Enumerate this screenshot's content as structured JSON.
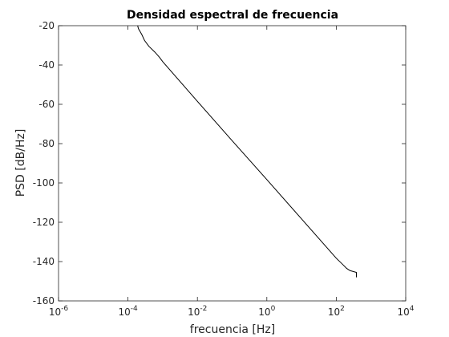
{
  "chart_data": {
    "type": "line",
    "title": "Densidad espectral de frecuencia",
    "xlabel": "frecuencia [Hz]",
    "ylabel": "PSD [dB/Hz]",
    "xscale": "log",
    "xlim": [
      1e-06,
      10000
    ],
    "ylim": [
      -160,
      -20
    ],
    "grid": true,
    "x_ticks": [
      {
        "base": "10",
        "exp": "-6",
        "value": 1e-06
      },
      {
        "base": "10",
        "exp": "-4",
        "value": 0.0001
      },
      {
        "base": "10",
        "exp": "-2",
        "value": 0.01
      },
      {
        "base": "10",
        "exp": "0",
        "value": 1
      },
      {
        "base": "10",
        "exp": "2",
        "value": 100
      },
      {
        "base": "10",
        "exp": "4",
        "value": 10000
      }
    ],
    "y_ticks": [
      "-20",
      "-40",
      "-60",
      "-80",
      "-100",
      "-120",
      "-140",
      "-160"
    ],
    "series": [
      {
        "color": "#000000",
        "x": [
          0.00019,
          0.0002,
          0.00025,
          0.0003,
          0.0004,
          0.0006,
          0.0008,
          0.001,
          0.01,
          0.1,
          1,
          10,
          100,
          150,
          200,
          250,
          300,
          380,
          380
        ],
        "y": [
          -20,
          -21.5,
          -24.5,
          -27.5,
          -30.5,
          -33.5,
          -36,
          -38.3,
          -58.5,
          -78.5,
          -98.3,
          -118.3,
          -138.3,
          -141.3,
          -143.5,
          -144.6,
          -145,
          -145.5,
          -148
        ]
      }
    ]
  }
}
